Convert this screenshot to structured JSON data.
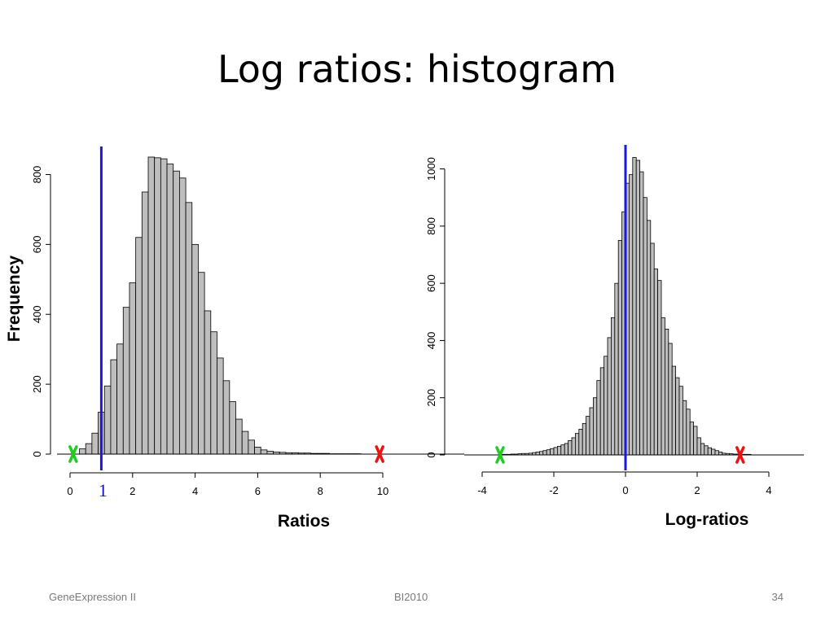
{
  "slide": {
    "title": "Log ratios: histogram",
    "footer_left": "GeneExpression II",
    "footer_center": "BI2010",
    "footer_right": "34"
  },
  "chart_data": [
    {
      "type": "bar",
      "title": "",
      "xlabel": "Ratios",
      "ylabel": "Frequency",
      "xlim": [
        0,
        10
      ],
      "ylim": [
        0,
        850
      ],
      "xticks": [
        0,
        2,
        4,
        6,
        8,
        10
      ],
      "yticks": [
        0,
        200,
        400,
        600,
        800
      ],
      "bin_width": 0.2,
      "bin_start": 0.1,
      "values": [
        0,
        15,
        30,
        60,
        120,
        195,
        270,
        315,
        420,
        490,
        620,
        750,
        850,
        848,
        845,
        830,
        810,
        790,
        720,
        600,
        520,
        410,
        350,
        275,
        210,
        150,
        100,
        65,
        40,
        20,
        12,
        8,
        6,
        5,
        4,
        4,
        3,
        3,
        2,
        2,
        2,
        1,
        1,
        1,
        1,
        1,
        0,
        0,
        0,
        0,
        0,
        0,
        0,
        0,
        0,
        0,
        0,
        0,
        0,
        0
      ],
      "vline": {
        "x": 1,
        "color": "#1a1adc",
        "label": "1"
      },
      "markers": [
        {
          "x": 0.1,
          "glyph": "x",
          "color": "#22cc22"
        },
        {
          "x": 9.9,
          "glyph": "x",
          "color": "#ee1111"
        }
      ],
      "bar_color": "#bebebe"
    },
    {
      "type": "bar",
      "title": "",
      "xlabel": "Log-ratios",
      "ylabel": "",
      "xlim": [
        -4,
        4
      ],
      "ylim": [
        0,
        1050
      ],
      "xticks": [
        -4,
        -2,
        0,
        2,
        4
      ],
      "yticks": [
        0,
        200,
        400,
        600,
        800,
        1000
      ],
      "bin_width": 0.1,
      "bin_start": -3.5,
      "values": [
        2,
        2,
        2,
        3,
        3,
        4,
        5,
        5,
        6,
        8,
        10,
        12,
        15,
        18,
        22,
        26,
        30,
        35,
        40,
        50,
        60,
        75,
        90,
        110,
        135,
        165,
        200,
        260,
        305,
        345,
        410,
        480,
        600,
        750,
        850,
        950,
        980,
        1040,
        1030,
        990,
        900,
        820,
        740,
        650,
        610,
        480,
        440,
        390,
        310,
        270,
        240,
        190,
        160,
        115,
        100,
        60,
        40,
        32,
        25,
        20,
        15,
        10,
        6,
        5,
        4,
        3,
        3,
        2,
        2,
        2
      ],
      "vline": {
        "x": 0,
        "color": "#1a1adc",
        "label": ""
      },
      "markers": [
        {
          "x": -3.5,
          "glyph": "x",
          "color": "#22cc22"
        },
        {
          "x": 3.2,
          "glyph": "x",
          "color": "#ee1111"
        }
      ],
      "bar_color": "#bebebe"
    }
  ]
}
